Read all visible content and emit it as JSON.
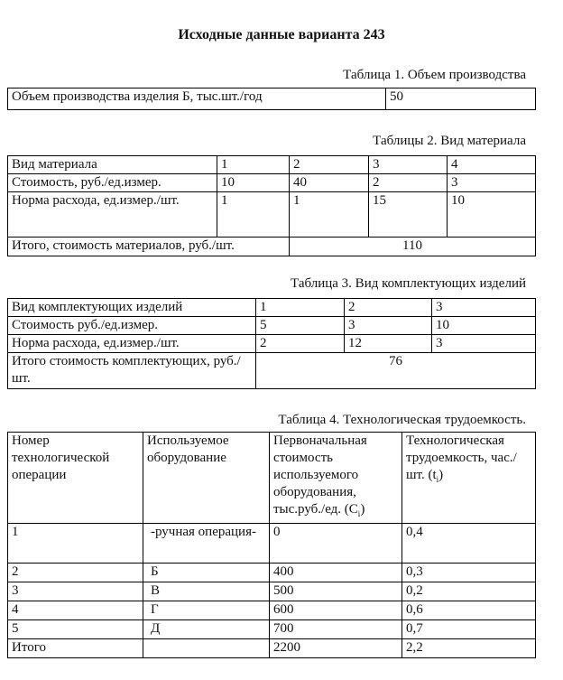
{
  "title": "Исходные данные варианта 243",
  "t1": {
    "caption": "Таблица 1. Объем производства",
    "label": "Объем производства изделия Б, тыс.шт./год",
    "value": "50"
  },
  "t2": {
    "caption": "Таблицы 2. Вид материала",
    "rows": [
      [
        "Вид материала",
        "1",
        "2",
        "3",
        "4"
      ],
      [
        "Стоимость, руб./ед.измер.",
        "10",
        "40",
        "2",
        "3"
      ],
      [
        "Норма расхода, ед.измер./шт.",
        "1",
        "1",
        "15",
        "10"
      ]
    ],
    "total_label": "Итого, стоимость материалов, руб./шт.",
    "total_value": "110"
  },
  "t3": {
    "caption": "Таблица 3. Вид комплектующих изделий",
    "rows": [
      [
        "Вид комплектующих изделий",
        "1",
        "2",
        "3"
      ],
      [
        "Стоимость руб./ед.измер.",
        "5",
        "3",
        "10"
      ],
      [
        "Норма расхода, ед.измер./шт.",
        "2",
        "12",
        "3"
      ]
    ],
    "total_label": "Итого стоимость комплектующих, руб./шт.",
    "total_value": "76"
  },
  "t4": {
    "caption": "Таблица 4. Технологическая трудоемкость.",
    "headers": [
      "Номер технологической операции",
      "Используемое оборудование",
      "Первоначальная стоимость используемого оборудования, тыс.руб./ед. (Ci)",
      "Технологическая трудоемкость, час./шт. (ti)"
    ],
    "rows": [
      [
        "1",
        "-ручная операция-",
        "0",
        "0,4"
      ],
      [
        "2",
        "Б",
        "400",
        "0,3"
      ],
      [
        "3",
        "В",
        "500",
        "0,2"
      ],
      [
        "4",
        "Г",
        "600",
        "0,6"
      ],
      [
        "5",
        "Д",
        "700",
        "0,7"
      ],
      [
        "Итого",
        "",
        "2200",
        "2,2"
      ]
    ]
  }
}
